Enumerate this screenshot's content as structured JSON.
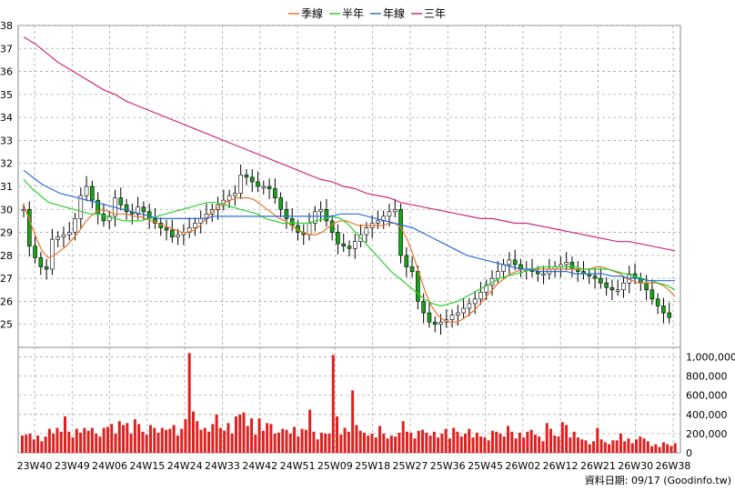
{
  "legend": [
    {
      "name": "季線",
      "color": "#e8742a"
    },
    {
      "name": "半年",
      "color": "#2fcf2f"
    },
    {
      "name": "年線",
      "color": "#2a6fd8"
    },
    {
      "name": "三年",
      "color": "#d12a7c"
    }
  ],
  "source_note": "資料日期: 09/17  (Goodinfo.tw)",
  "chart_data": [
    {
      "type": "candlestick",
      "ylim": [
        24,
        38
      ],
      "y_ticks": [
        25,
        26,
        27,
        28,
        29,
        30,
        31,
        32,
        33,
        34,
        35,
        36,
        37,
        38
      ],
      "x_ticks": [
        "23W40",
        "23W49",
        "24W06",
        "24W15",
        "24W24",
        "24W33",
        "24W42",
        "24W51",
        "25W09",
        "25W18",
        "25W27",
        "25W36",
        "25W45",
        "26W02",
        "26W12",
        "26W21",
        "26W30",
        "26W38"
      ],
      "grid": true,
      "legend_position": "top-center",
      "closes": [
        30.0,
        28.4,
        27.9,
        27.5,
        27.4,
        28.7,
        28.8,
        28.9,
        29.0,
        29.6,
        30.6,
        31.0,
        30.4,
        29.8,
        29.5,
        29.7,
        30.5,
        30.2,
        29.9,
        29.8,
        30.1,
        29.9,
        29.6,
        29.4,
        29.2,
        29.1,
        28.8,
        28.9,
        29.0,
        29.2,
        29.4,
        29.6,
        29.8,
        30.0,
        30.2,
        30.4,
        30.6,
        30.7,
        31.5,
        31.4,
        31.2,
        31.0,
        31.0,
        30.9,
        30.5,
        30.0,
        29.6,
        29.3,
        29.0,
        28.9,
        29.4,
        29.9,
        30.0,
        29.5,
        29.0,
        28.5,
        28.4,
        28.3,
        28.6,
        28.9,
        29.2,
        29.4,
        29.5,
        29.7,
        29.9,
        30.0,
        28.0,
        27.5,
        27.3,
        26.0,
        25.5,
        25.1,
        25.0,
        25.1,
        25.2,
        25.4,
        25.5,
        25.7,
        25.9,
        26.1,
        26.4,
        26.7,
        27.0,
        27.3,
        27.6,
        27.8,
        27.6,
        27.4,
        27.4,
        27.3,
        27.2,
        27.2,
        27.4,
        27.5,
        27.6,
        27.7,
        27.4,
        27.3,
        27.2,
        27.1,
        27.0,
        26.8,
        26.6,
        26.5,
        26.5,
        26.8,
        27.2,
        27.0,
        26.8,
        26.5,
        26.1,
        25.8,
        25.5,
        25.3
      ],
      "series": [
        {
          "name": "季線",
          "values": [
            30.2,
            29.5,
            28.8,
            28.2,
            27.9,
            28.0,
            28.2,
            28.4,
            28.7,
            29.0,
            29.4,
            29.7,
            29.9,
            30.0,
            29.9,
            29.8,
            29.8,
            29.8,
            29.7,
            29.7,
            29.6,
            29.5,
            29.4,
            29.3,
            29.2,
            29.1,
            29.0,
            29.0,
            29.1,
            29.3,
            29.6,
            29.9,
            30.1,
            30.3,
            30.4,
            30.5,
            30.5,
            30.5,
            30.4,
            30.2,
            30.0,
            29.8,
            29.6,
            29.5,
            29.3,
            29.1,
            29.0,
            28.9,
            28.9,
            29.0,
            29.2,
            29.4,
            29.5,
            29.5,
            29.4,
            29.3,
            29.3,
            29.3,
            29.3,
            29.3,
            29.4,
            29.4,
            29.2,
            28.7,
            28.0,
            27.2,
            26.4,
            25.8,
            25.4,
            25.2,
            25.1,
            25.1,
            25.2,
            25.4,
            25.6,
            25.9,
            26.2,
            26.5,
            26.8,
            27.0,
            27.2,
            27.3,
            27.4,
            27.4,
            27.4,
            27.4,
            27.4,
            27.4,
            27.4,
            27.4,
            27.4,
            27.4,
            27.4,
            27.4,
            27.5,
            27.5,
            27.4,
            27.3,
            27.2,
            27.0,
            26.9,
            26.8,
            26.8,
            26.8,
            26.8,
            26.7,
            26.5,
            26.2
          ]
        },
        {
          "name": "半年",
          "values": [
            31.3,
            30.9,
            30.6,
            30.3,
            30.2,
            30.1,
            30.0,
            29.9,
            29.8,
            29.8,
            29.7,
            29.6,
            29.5,
            29.5,
            29.5,
            29.6,
            29.7,
            29.8,
            29.9,
            30.0,
            30.1,
            30.2,
            30.3,
            30.3,
            30.2,
            30.1,
            30.0,
            29.9,
            29.8,
            29.6,
            29.5,
            29.4,
            29.4,
            29.4,
            29.4,
            29.5,
            29.6,
            29.7,
            29.6,
            29.3,
            28.9,
            28.5,
            28.1,
            27.7,
            27.3,
            27.0,
            26.7,
            26.4,
            26.1,
            25.9,
            25.8,
            25.9,
            26.0,
            26.2,
            26.4,
            26.6,
            26.8,
            27.0,
            27.1,
            27.2,
            27.3,
            27.4,
            27.5,
            27.5,
            27.5,
            27.5,
            27.5,
            27.4,
            27.4,
            27.4,
            27.4,
            27.3,
            27.2,
            27.1,
            27.0,
            26.9,
            26.8,
            26.7,
            26.5
          ]
        },
        {
          "name": "年線",
          "values": [
            31.7,
            31.4,
            31.1,
            30.9,
            30.7,
            30.6,
            30.5,
            30.4,
            30.3,
            30.2,
            30.1,
            30.0,
            29.9,
            29.8,
            29.7,
            29.6,
            29.6,
            29.6,
            29.6,
            29.6,
            29.6,
            29.7,
            29.7,
            29.7,
            29.7,
            29.7,
            29.7,
            29.7,
            29.7,
            29.7,
            29.7,
            29.7,
            29.7,
            29.7,
            29.7,
            29.8,
            29.8,
            29.8,
            29.7,
            29.6,
            29.5,
            29.4,
            29.3,
            29.2,
            29.0,
            28.8,
            28.6,
            28.4,
            28.2,
            28.0,
            27.9,
            27.8,
            27.7,
            27.6,
            27.5,
            27.4,
            27.4,
            27.3,
            27.3,
            27.3,
            27.3,
            27.2,
            27.2,
            27.2,
            27.2,
            27.1,
            27.1,
            27.0,
            27.0,
            26.9,
            26.9,
            26.9,
            26.9
          ]
        },
        {
          "name": "三年",
          "values": [
            37.5,
            37.2,
            36.8,
            36.4,
            36.1,
            35.8,
            35.5,
            35.2,
            35.0,
            34.7,
            34.5,
            34.3,
            34.1,
            33.9,
            33.7,
            33.5,
            33.3,
            33.1,
            32.9,
            32.7,
            32.5,
            32.3,
            32.1,
            31.9,
            31.7,
            31.5,
            31.3,
            31.2,
            31.0,
            30.9,
            30.7,
            30.6,
            30.5,
            30.3,
            30.2,
            30.1,
            30.0,
            29.9,
            29.8,
            29.7,
            29.6,
            29.6,
            29.5,
            29.4,
            29.4,
            29.3,
            29.2,
            29.1,
            29.0,
            28.9,
            28.8,
            28.7,
            28.6,
            28.6,
            28.5,
            28.4,
            28.3,
            28.2
          ]
        }
      ]
    },
    {
      "type": "bar",
      "ylim": [
        0,
        1100000
      ],
      "y_ticks": [
        "0",
        "200,000",
        "400,000",
        "600,000",
        "800,000",
        "1,000,000"
      ],
      "values": [
        180000,
        190000,
        200000,
        140000,
        180000,
        120000,
        170000,
        250000,
        200000,
        260000,
        220000,
        380000,
        220000,
        160000,
        250000,
        210000,
        260000,
        230000,
        260000,
        200000,
        170000,
        260000,
        270000,
        300000,
        200000,
        330000,
        290000,
        310000,
        200000,
        350000,
        300000,
        220000,
        190000,
        290000,
        260000,
        210000,
        260000,
        240000,
        250000,
        290000,
        180000,
        250000,
        350000,
        1040000,
        430000,
        330000,
        240000,
        260000,
        220000,
        300000,
        400000,
        260000,
        230000,
        310000,
        200000,
        380000,
        400000,
        420000,
        280000,
        360000,
        190000,
        360000,
        230000,
        310000,
        300000,
        200000,
        210000,
        250000,
        240000,
        200000,
        270000,
        170000,
        250000,
        240000,
        450000,
        220000,
        140000,
        210000,
        200000,
        200000,
        1020000,
        380000,
        190000,
        260000,
        220000,
        650000,
        290000,
        230000,
        210000,
        180000,
        200000,
        160000,
        280000,
        200000,
        150000,
        180000,
        170000,
        210000,
        330000,
        220000,
        210000,
        150000,
        230000,
        240000,
        210000,
        180000,
        220000,
        160000,
        200000,
        250000,
        150000,
        260000,
        220000,
        170000,
        200000,
        250000,
        160000,
        210000,
        170000,
        160000,
        130000,
        230000,
        220000,
        200000,
        170000,
        280000,
        220000,
        150000,
        210000,
        160000,
        220000,
        240000,
        190000,
        170000,
        120000,
        310000,
        250000,
        180000,
        170000,
        320000,
        290000,
        160000,
        220000,
        160000,
        140000,
        130000,
        90000,
        120000,
        260000,
        140000,
        110000,
        90000,
        130000,
        130000,
        200000,
        120000,
        150000,
        100000,
        140000,
        170000,
        150000,
        120000,
        70000,
        90000,
        60000,
        110000,
        90000,
        70000,
        100000
      ]
    }
  ]
}
